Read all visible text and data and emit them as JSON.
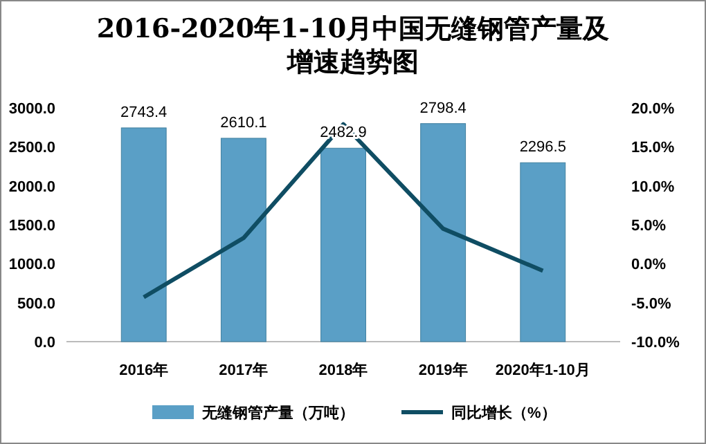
{
  "chart_data": {
    "type": "bar",
    "title": "2016-2020年1-10月中国无缝钢管产量及增速趋势图",
    "categories": [
      "2016年",
      "2017年",
      "2018年",
      "2019年",
      "2020年1-10月"
    ],
    "series": [
      {
        "name": "无缝钢管产量（万吨）",
        "color": "#5a9fc6",
        "values": [
          2743.4,
          2610.1,
          2482.9,
          2798.4,
          2296.5
        ],
        "value_labels": [
          "2743.4",
          "2610.1",
          "2482.9",
          "2798.4",
          "2296.5"
        ]
      },
      {
        "name": "同比增长（%）",
        "type": "line",
        "axis": "y2",
        "color": "#0f4d63",
        "values": [
          -4.3,
          3.3,
          17.9,
          4.5,
          -0.9
        ]
      }
    ],
    "ylim": [
      0,
      3000
    ],
    "yticks": [
      {
        "value": 0,
        "label": "0.0"
      },
      {
        "value": 500,
        "label": "500.0"
      },
      {
        "value": 1000,
        "label": "1000.0"
      },
      {
        "value": 1500,
        "label": "1500.0"
      },
      {
        "value": 2000,
        "label": "2000.0"
      },
      {
        "value": 2500,
        "label": "2500.0"
      },
      {
        "value": 3000,
        "label": "3000.0"
      }
    ],
    "y2lim": [
      -10,
      20
    ],
    "y2ticks": [
      {
        "value": -10,
        "label": "-10.0%"
      },
      {
        "value": -5,
        "label": "-5.0%"
      },
      {
        "value": 0,
        "label": "0.0%"
      },
      {
        "value": 5,
        "label": "5.0%"
      },
      {
        "value": 10,
        "label": "10.0%"
      },
      {
        "value": 15,
        "label": "15.0%"
      },
      {
        "value": 20,
        "label": "20.0%"
      }
    ],
    "legend": "bottom",
    "marker": "none"
  }
}
